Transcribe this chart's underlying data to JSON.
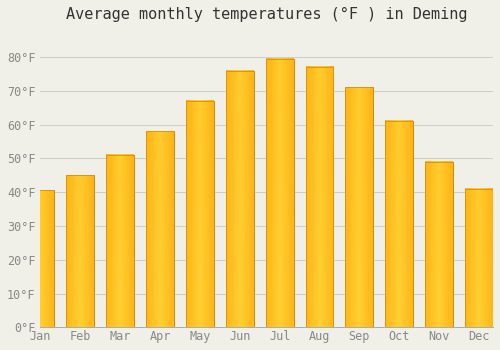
{
  "title": "Average monthly temperatures (°F ) in Deming",
  "months": [
    "Jan",
    "Feb",
    "Mar",
    "Apr",
    "May",
    "Jun",
    "Jul",
    "Aug",
    "Sep",
    "Oct",
    "Nov",
    "Dec"
  ],
  "values": [
    40.5,
    45.0,
    51.0,
    58.0,
    67.0,
    76.0,
    79.5,
    77.0,
    71.0,
    61.0,
    49.0,
    41.0
  ],
  "bar_color": "#FFA500",
  "bar_face_color": "#FFB700",
  "bar_edge_color": "#CC8800",
  "background_color": "#F0F0E8",
  "grid_color": "#CCCCCC",
  "ylim": [
    0,
    88
  ],
  "yticks": [
    0,
    10,
    20,
    30,
    40,
    50,
    60,
    70,
    80
  ],
  "ytick_labels": [
    "0°F",
    "10°F",
    "20°F",
    "30°F",
    "40°F",
    "50°F",
    "60°F",
    "70°F",
    "80°F"
  ],
  "title_fontsize": 11,
  "tick_fontsize": 8.5,
  "tick_color": "#888888",
  "spine_color": "#AAAAAA",
  "bar_width": 0.7
}
